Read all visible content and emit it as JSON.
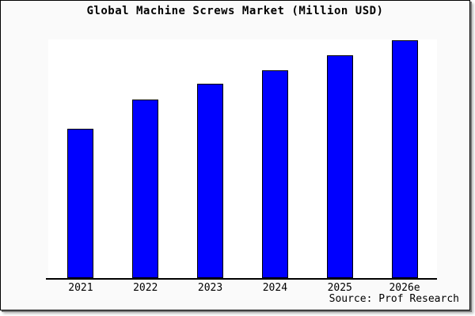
{
  "title": "Global Machine Screws Market (Million USD)",
  "source": "Source: Prof Research",
  "colors": {
    "bar_fill": "#0000ff",
    "bar_border": "#000000",
    "canvas_background": "#fafafa",
    "plot_background": "#ffffff",
    "axis": "#000000",
    "text": "#000000"
  },
  "chart_data": {
    "type": "bar",
    "title": "Global Machine Screws Market (Million USD)",
    "categories": [
      "2021",
      "2022",
      "2023",
      "2024",
      "2025",
      "2026e"
    ],
    "values": [
      63,
      75,
      82,
      87,
      93,
      100
    ],
    "values_note": "relative bar heights, indexed to 2026e = 100; chart shows no numeric y-axis",
    "bar_height_pct_of_plot": [
      62.6,
      74.8,
      81.5,
      87.2,
      93.4,
      99.7
    ],
    "xlabel": "",
    "ylabel": "",
    "legend": false,
    "grid": false,
    "ylim_pct": [
      0,
      100
    ],
    "source": "Source: Prof Research"
  }
}
